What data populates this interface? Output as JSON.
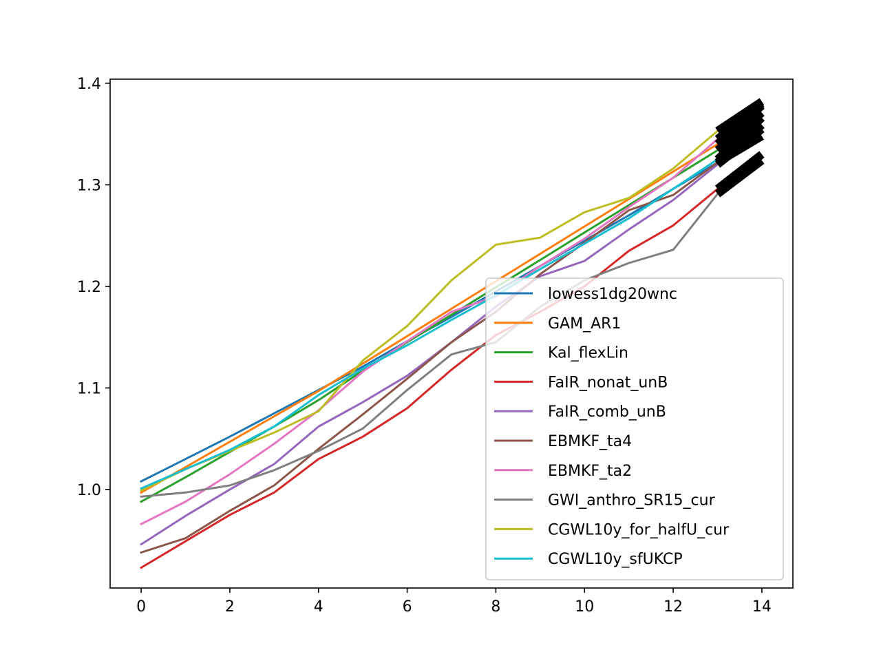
{
  "chart_data": {
    "type": "line",
    "title": "",
    "xlabel": "",
    "ylabel": "",
    "xlim": [
      -0.7,
      14.7
    ],
    "ylim": [
      0.903,
      1.404
    ],
    "xticks": [
      0,
      2,
      4,
      6,
      8,
      10,
      12,
      14
    ],
    "xtick_labels": [
      "0",
      "2",
      "4",
      "6",
      "8",
      "10",
      "12",
      "14"
    ],
    "yticks": [
      1.0,
      1.1,
      1.2,
      1.3,
      1.4
    ],
    "ytick_labels": [
      "1.0",
      "1.1",
      "1.2",
      "1.3",
      "1.4"
    ],
    "grid": false,
    "legend_position": "lower-right",
    "series": [
      {
        "name": "lowess1dg20wnc",
        "color": "#1f77b4",
        "x": [
          0,
          1,
          2,
          3,
          4,
          5,
          6,
          7,
          8,
          9,
          10,
          11,
          12,
          13
        ],
        "values": [
          1.008,
          1.03,
          1.052,
          1.075,
          1.098,
          1.121,
          1.146,
          1.17,
          1.195,
          1.22,
          1.245,
          1.27,
          1.296,
          1.322
        ]
      },
      {
        "name": "GAM_AR1",
        "color": "#ff7f0e",
        "x": [
          0,
          1,
          2,
          3,
          4,
          5,
          6,
          7,
          8,
          9,
          10,
          11,
          12,
          13
        ],
        "values": [
          0.997,
          1.022,
          1.047,
          1.072,
          1.097,
          1.124,
          1.151,
          1.178,
          1.205,
          1.232,
          1.259,
          1.286,
          1.313,
          1.34
        ]
      },
      {
        "name": "Kal_flexLin",
        "color": "#2ca02c",
        "x": [
          0,
          1,
          2,
          3,
          4,
          5,
          6,
          7,
          8,
          9,
          10,
          11,
          12,
          13
        ],
        "values": [
          0.988,
          1.012,
          1.037,
          1.062,
          1.088,
          1.117,
          1.145,
          1.172,
          1.199,
          1.226,
          1.253,
          1.28,
          1.307,
          1.334
        ]
      },
      {
        "name": "FaIR_nonat_unB",
        "color": "#d62728",
        "x": [
          0,
          1,
          2,
          3,
          4,
          5,
          6,
          7,
          8,
          9,
          10,
          11,
          12,
          13
        ],
        "values": [
          0.923,
          0.949,
          0.975,
          0.997,
          1.03,
          1.052,
          1.08,
          1.118,
          1.152,
          1.175,
          1.2,
          1.235,
          1.26,
          1.296
        ]
      },
      {
        "name": "FaIR_comb_unB",
        "color": "#9467bd",
        "x": [
          0,
          1,
          2,
          3,
          4,
          5,
          6,
          7,
          8,
          9,
          10,
          11,
          12,
          13
        ],
        "values": [
          0.946,
          0.974,
          1.0,
          1.025,
          1.062,
          1.086,
          1.112,
          1.145,
          1.18,
          1.21,
          1.225,
          1.256,
          1.285,
          1.32
        ]
      },
      {
        "name": "EBMKF_ta4",
        "color": "#8c564b",
        "x": [
          0,
          1,
          2,
          3,
          4,
          5,
          6,
          7,
          8,
          9,
          10,
          11,
          12,
          13
        ],
        "values": [
          0.938,
          0.952,
          0.979,
          1.004,
          1.04,
          1.074,
          1.109,
          1.145,
          1.175,
          1.212,
          1.243,
          1.275,
          1.29,
          1.322
        ]
      },
      {
        "name": "EBMKF_ta2",
        "color": "#e377c2",
        "x": [
          0,
          1,
          2,
          3,
          4,
          5,
          6,
          7,
          8,
          9,
          10,
          11,
          12,
          13
        ],
        "values": [
          0.966,
          0.988,
          1.015,
          1.045,
          1.078,
          1.116,
          1.146,
          1.175,
          1.19,
          1.22,
          1.247,
          1.278,
          1.307,
          1.345
        ]
      },
      {
        "name": "GWI_anthro_SR15_cur",
        "color": "#7f7f7f",
        "x": [
          0,
          1,
          2,
          3,
          4,
          5,
          6,
          7,
          8,
          9,
          10,
          11,
          12,
          13
        ],
        "values": [
          0.993,
          0.997,
          1.004,
          1.019,
          1.038,
          1.06,
          1.098,
          1.133,
          1.145,
          1.18,
          1.206,
          1.223,
          1.236,
          1.291
        ]
      },
      {
        "name": "CGWL10y_for_halfU_cur",
        "color": "#bcbd22",
        "x": [
          0,
          1,
          2,
          3,
          4,
          5,
          6,
          7,
          8,
          9,
          10,
          11,
          12,
          13
        ],
        "values": [
          0.999,
          1.02,
          1.038,
          1.056,
          1.077,
          1.127,
          1.161,
          1.206,
          1.241,
          1.248,
          1.273,
          1.287,
          1.316,
          1.353
        ]
      },
      {
        "name": "CGWL10y_sfUKCP",
        "color": "#17becf",
        "x": [
          0,
          1,
          2,
          3,
          4,
          5,
          6,
          7,
          8,
          9,
          10,
          11,
          12,
          13
        ],
        "values": [
          1.001,
          1.02,
          1.039,
          1.062,
          1.093,
          1.119,
          1.142,
          1.167,
          1.191,
          1.217,
          1.242,
          1.267,
          1.296,
          1.325
        ]
      }
    ],
    "projection_segments": {
      "color": "#000000",
      "x": [
        13,
        14
      ],
      "pairs": [
        [
          1.322,
          1.359
        ],
        [
          1.34,
          1.378
        ],
        [
          1.334,
          1.371
        ],
        [
          1.296,
          1.33
        ],
        [
          1.32,
          1.355
        ],
        [
          1.322,
          1.348
        ],
        [
          1.345,
          1.38
        ],
        [
          1.291,
          1.324
        ],
        [
          1.353,
          1.382
        ],
        [
          1.325,
          1.366
        ]
      ]
    }
  }
}
